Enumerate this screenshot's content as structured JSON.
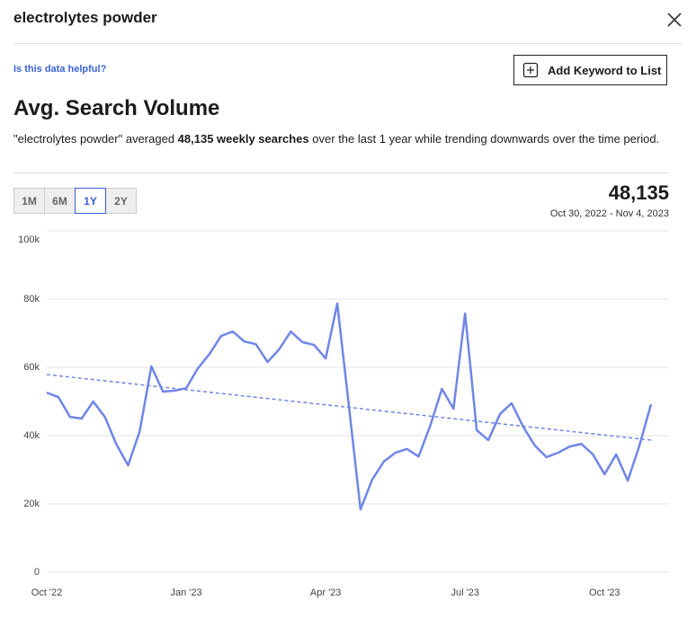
{
  "header": {
    "title": "electrolytes powder"
  },
  "feedback_link": "Is this data helpful?",
  "button": "Add Keyword to List",
  "section_title": "Avg. Search Volume",
  "description": {
    "before": "\"electrolytes powder\" averaged ",
    "bold": "48,135 weekly searches",
    "after": " over the last 1 year while trending downwards over the time period."
  },
  "tabs": {
    "options": [
      "1M",
      "6M",
      "1Y",
      "2Y"
    ],
    "selected": 2
  },
  "summary": {
    "value": "48,135",
    "date_range": "Oct 30, 2022 - Nov 4, 2023"
  },
  "chart_data": {
    "type": "line",
    "color": "#6f86e6",
    "values": [
      52600,
      51300,
      45500,
      45000,
      50000,
      45500,
      37400,
      31300,
      41300,
      60300,
      52900,
      53200,
      53900,
      59700,
      63900,
      69200,
      70500,
      67600,
      66800,
      61600,
      65300,
      70500,
      67400,
      66600,
      62600,
      78700,
      48700,
      18400,
      27100,
      32400,
      35000,
      36100,
      33900,
      42900,
      53700,
      47900,
      75800,
      41600,
      38700,
      46300,
      49500,
      42600,
      37100,
      33700,
      35000,
      36800,
      37600,
      34500,
      28700,
      34500,
      26800,
      37100,
      49200
    ],
    "trend": {
      "start": 57900,
      "end": 38700,
      "dashed": true
    },
    "xlim": [
      0,
      52
    ],
    "xticks": [
      {
        "value": 0,
        "label": "Oct '22"
      },
      {
        "value": 12,
        "label": "Jan '23"
      },
      {
        "value": 24,
        "label": "Apr '23"
      },
      {
        "value": 36,
        "label": "Jul '23"
      },
      {
        "value": 48,
        "label": "Oct '23"
      }
    ],
    "ylim": [
      0,
      100000
    ],
    "yticks": [
      0,
      {
        "value": 20000,
        "label": "20k"
      },
      {
        "value": 40000,
        "label": "40k"
      },
      {
        "value": 60000,
        "label": "60k"
      },
      {
        "value": 80000,
        "label": "80k"
      },
      {
        "value": 100000,
        "label": "100k"
      }
    ],
    "grid": true
  }
}
